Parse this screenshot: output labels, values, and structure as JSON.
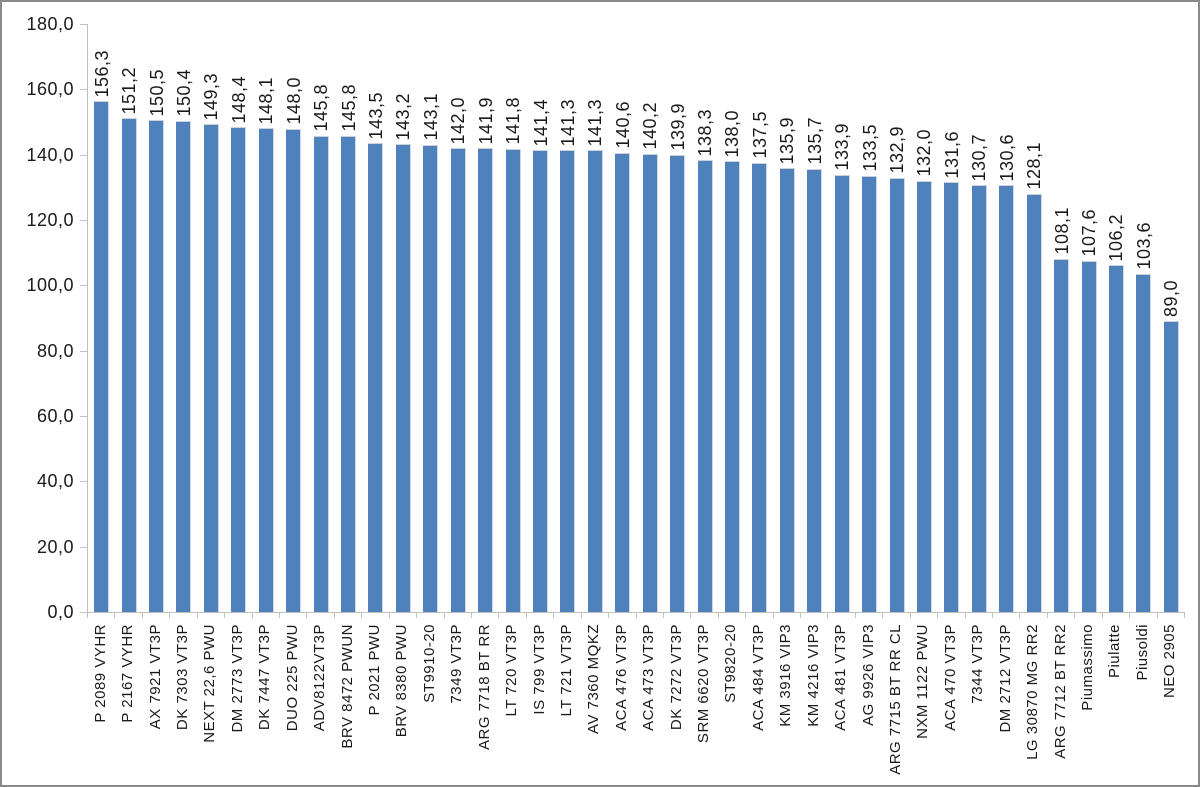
{
  "chart_data": {
    "type": "bar",
    "title": "",
    "xlabel": "",
    "ylabel": "",
    "grid": "off",
    "legend": "none",
    "bar_color": "#4F81BD",
    "axis_line_color": "#BFBFBF",
    "text_color": "#1A1A1A",
    "frame_border_color": "#8A8A8A",
    "ylim": [
      0,
      180
    ],
    "y_tick_step": 20,
    "y_tick_labels": [
      "180,0",
      "160,0",
      "140,0",
      "120,0",
      "100,0",
      "80,0",
      "60,0",
      "40,0",
      "20,0",
      "0,0"
    ],
    "categories": [
      "P 2089 VYHR",
      "P 2167 VYHR",
      "AX 7921 VT3P",
      "DK 7303 VT3P",
      "NEXT 22,6 PWU",
      "DM 2773 VT3P",
      "DK 7447 VT3P",
      "DUO 225 PWU",
      "ADV8122VT3P",
      "BRV 8472 PWUN",
      "P 2021 PWU",
      "BRV 8380 PWU",
      "ST9910-20",
      "7349 VT3P",
      "ARG 7718 BT RR",
      "LT 720 VT3P",
      "IS 799 VT3P",
      "LT 721 VT3P",
      "AV 7360 MQKZ",
      "ACA 476 VT3P",
      "ACA 473 VT3P",
      "DK 7272 VT3P",
      "SRM 6620 VT3P",
      "ST9820-20",
      "ACA 484 VT3P",
      "KM 3916 VIP3",
      "KM 4216 VIP3",
      "ACA 481 VT3P",
      "AG 9926 VIP3",
      "ARG 7715 BT RR CL",
      "NXM 1122 PWU",
      "ACA 470 VT3P",
      "7344 VT3P",
      "DM 2712 VT3P",
      "LG 30870 MG RR2",
      "ARG 7712 BT RR2",
      "Piumassimo",
      "Piulatte",
      "Piusoldi",
      "NEO 2905"
    ],
    "values": [
      156.3,
      151.2,
      150.5,
      150.4,
      149.3,
      148.4,
      148.1,
      148.0,
      145.8,
      145.8,
      143.5,
      143.2,
      143.1,
      142.0,
      141.9,
      141.8,
      141.4,
      141.3,
      141.3,
      140.6,
      140.2,
      139.9,
      138.3,
      138.0,
      137.5,
      135.9,
      135.7,
      133.9,
      133.5,
      132.9,
      132.0,
      131.6,
      130.7,
      130.6,
      128.1,
      108.1,
      107.6,
      106.2,
      103.6,
      89.0
    ],
    "value_labels": [
      "156,3",
      "151,2",
      "150,5",
      "150,4",
      "149,3",
      "148,4",
      "148,1",
      "148,0",
      "145,8",
      "145,8",
      "143,5",
      "143,2",
      "143,1",
      "142,0",
      "141,9",
      "141,8",
      "141,4",
      "141,3",
      "141,3",
      "140,6",
      "140,2",
      "139,9",
      "138,3",
      "138,0",
      "137,5",
      "135,9",
      "135,7",
      "133,9",
      "133,5",
      "132,9",
      "132,0",
      "131,6",
      "130,7",
      "130,6",
      "128,1",
      "108,1",
      "107,6",
      "106,2",
      "103,6",
      "89,0"
    ]
  }
}
